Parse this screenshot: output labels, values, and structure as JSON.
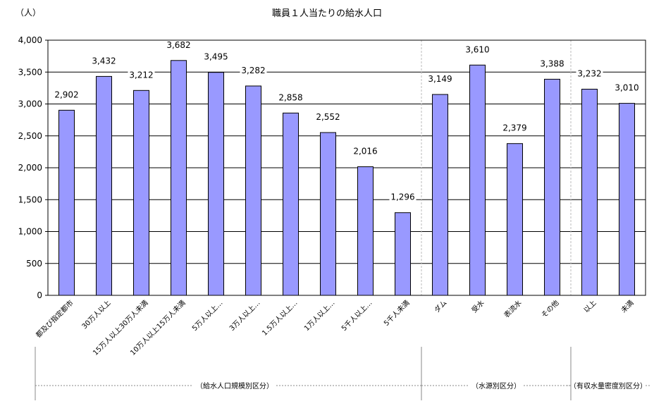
{
  "chart_data": {
    "type": "bar",
    "title": "職員１人当たりの給水人口",
    "ylabel": "（人）",
    "xlabel": "",
    "ylim": [
      0,
      4000
    ],
    "yticks": [
      0,
      500,
      1000,
      1500,
      2000,
      2500,
      3000,
      3500,
      4000
    ],
    "ytick_labels": [
      "0",
      "500",
      "1,000",
      "1,500",
      "2,000",
      "2,500",
      "3,000",
      "3,500",
      "4,000"
    ],
    "grid": true,
    "bar_color": "#9999ff",
    "categories": [
      "都及び指定都市",
      "30万人以上",
      "15万人以上30万人未満",
      "10万人以上15万人未満",
      "5万人以上…",
      "3万人以上…",
      "1.5万人以上…",
      "1万人以上…",
      "5千人以上…",
      "5千人未満",
      "ダム",
      "受水",
      "表流水",
      "その他",
      "以上",
      "未満"
    ],
    "values": [
      2902,
      3432,
      3212,
      3682,
      3495,
      3282,
      2858,
      2552,
      2016,
      1296,
      3149,
      3610,
      2379,
      3388,
      3232,
      3010
    ],
    "value_labels": [
      "2,902",
      "3,432",
      "3,212",
      "3,682",
      "3,495",
      "3,282",
      "2,858",
      "2,552",
      "2,016",
      "1,296",
      "3,149",
      "3,610",
      "2,379",
      "3,388",
      "3,232",
      "3,010"
    ],
    "groups": [
      {
        "label": "（給水人口規模別区分）",
        "start": 0,
        "end": 9
      },
      {
        "label": "（水源別区分）",
        "start": 10,
        "end": 13
      },
      {
        "label": "（有収水量密度別区分）",
        "start": 14,
        "end": 15
      }
    ]
  }
}
